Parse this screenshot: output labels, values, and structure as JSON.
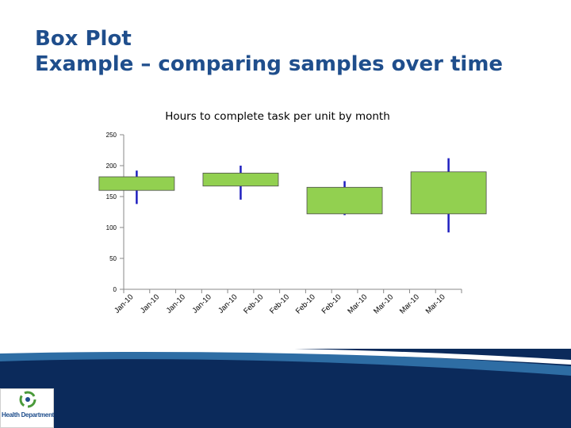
{
  "slide": {
    "title_line1": "Box Plot",
    "title_line2": "Example – comparing samples over time"
  },
  "logo": {
    "name": "Health Department"
  },
  "colors": {
    "title": "#1f4e8c",
    "box_fill": "#92d050",
    "whisker": "#1f1fbf",
    "footer_dark": "#0b2a5b",
    "footer_light": "#2e6da4"
  },
  "chart_data": {
    "type": "box",
    "title": "Hours to complete task per unit by month",
    "xlabel": "",
    "ylabel": "",
    "ylim": [
      0,
      250
    ],
    "yticks": [
      0,
      50,
      100,
      150,
      200,
      250
    ],
    "grid": false,
    "legend": "none",
    "categories": [
      "Jan-10",
      "Jan-10",
      "Jan-10",
      "Jan-10",
      "Jan-10",
      "Feb-10",
      "Feb-10",
      "Feb-10",
      "Feb-10",
      "Mar-10",
      "Mar-10",
      "Mar-10",
      "Mar-10"
    ],
    "boxes": [
      {
        "position": 0.5,
        "min": 138,
        "q1": 160,
        "q3": 182,
        "max": 192
      },
      {
        "position": 4.5,
        "min": 145,
        "q1": 167,
        "q3": 188,
        "max": 200
      },
      {
        "position": 8.5,
        "min": 120,
        "q1": 122,
        "q3": 165,
        "max": 175
      },
      {
        "position": 12.5,
        "min": 92,
        "q1": 122,
        "q3": 190,
        "max": 212
      }
    ]
  }
}
